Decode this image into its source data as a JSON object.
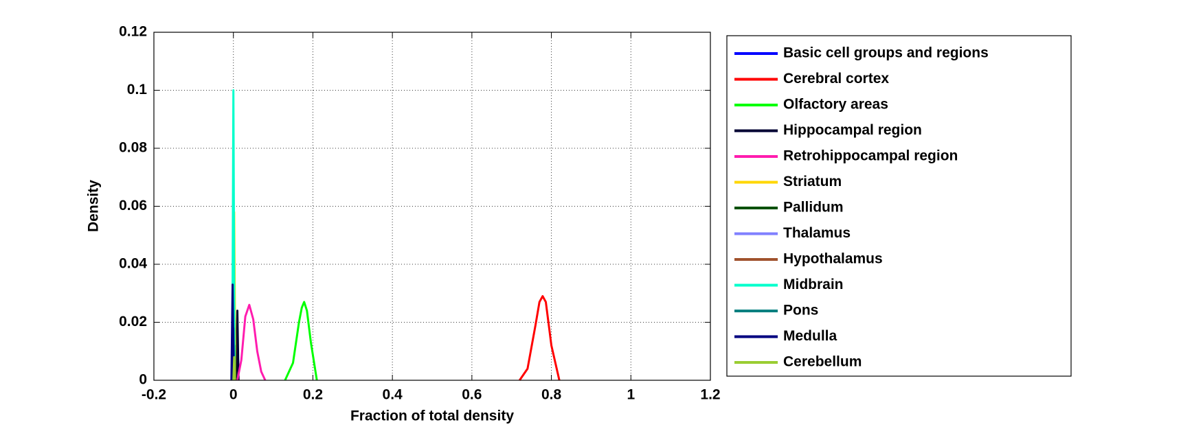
{
  "chart_data": {
    "type": "line",
    "xlabel": "Fraction of total density",
    "ylabel": "Density",
    "xlim": [
      -0.2,
      1.2
    ],
    "ylim": [
      0,
      0.12
    ],
    "xticks": [
      -0.2,
      0,
      0.2,
      0.4,
      0.6,
      0.8,
      1,
      1.2
    ],
    "yticks": [
      0,
      0.02,
      0.04,
      0.06,
      0.08,
      0.1,
      0.12
    ],
    "grid": true,
    "legend": "outside-right",
    "series": [
      {
        "name": "Basic cell groups and regions",
        "color": "#0000ff",
        "x": [
          -0.002,
          0.001,
          0.004
        ],
        "values": [
          0,
          0.02,
          0
        ]
      },
      {
        "name": "Cerebral cortex",
        "color": "#ff0000",
        "x": [
          0.72,
          0.74,
          0.76,
          0.77,
          0.778,
          0.786,
          0.8,
          0.82
        ],
        "values": [
          0,
          0.004,
          0.019,
          0.027,
          0.029,
          0.027,
          0.012,
          0
        ]
      },
      {
        "name": "Olfactory areas",
        "color": "#00ff00",
        "x": [
          0.13,
          0.15,
          0.165,
          0.172,
          0.178,
          0.185,
          0.195,
          0.21
        ],
        "values": [
          0,
          0.006,
          0.02,
          0.025,
          0.027,
          0.024,
          0.013,
          0
        ]
      },
      {
        "name": "Hippocampal region",
        "color": "#000033",
        "x": [
          0.007,
          0.01,
          0.013
        ],
        "values": [
          0,
          0.024,
          0
        ]
      },
      {
        "name": "Retrohippocampal region",
        "color": "#ff1cae",
        "x": [
          0.01,
          0.02,
          0.03,
          0.04,
          0.05,
          0.06,
          0.07,
          0.08
        ],
        "values": [
          0,
          0.007,
          0.022,
          0.026,
          0.021,
          0.01,
          0.003,
          0
        ]
      },
      {
        "name": "Striatum",
        "color": "#ffd700",
        "x": [
          -0.001,
          0.002,
          0.005
        ],
        "values": [
          0,
          0.058,
          0
        ]
      },
      {
        "name": "Pallidum",
        "color": "#005000",
        "x": [
          0.001,
          0.003,
          0.005
        ],
        "values": [
          0,
          0.012,
          0
        ]
      },
      {
        "name": "Thalamus",
        "color": "#8080ff",
        "x": [
          -0.001,
          0.001,
          0.003
        ],
        "values": [
          0,
          0.015,
          0
        ]
      },
      {
        "name": "Hypothalamus",
        "color": "#a0522d",
        "x": [
          0,
          0.002,
          0.004
        ],
        "values": [
          0,
          0.01,
          0
        ]
      },
      {
        "name": "Midbrain",
        "color": "#00ffcc",
        "x": [
          -0.003,
          0,
          0.003
        ],
        "values": [
          0,
          0.1,
          0
        ]
      },
      {
        "name": "Pons",
        "color": "#008080",
        "x": [
          -0.002,
          0,
          0.002
        ],
        "values": [
          0,
          0.018,
          0
        ]
      },
      {
        "name": "Medulla",
        "color": "#000080",
        "x": [
          -0.005,
          -0.002,
          0.001
        ],
        "values": [
          0,
          0.033,
          0
        ]
      },
      {
        "name": "Cerebellum",
        "color": "#9acd32",
        "x": [
          0,
          0.002,
          0.004
        ],
        "values": [
          0,
          0.008,
          0
        ]
      }
    ]
  }
}
